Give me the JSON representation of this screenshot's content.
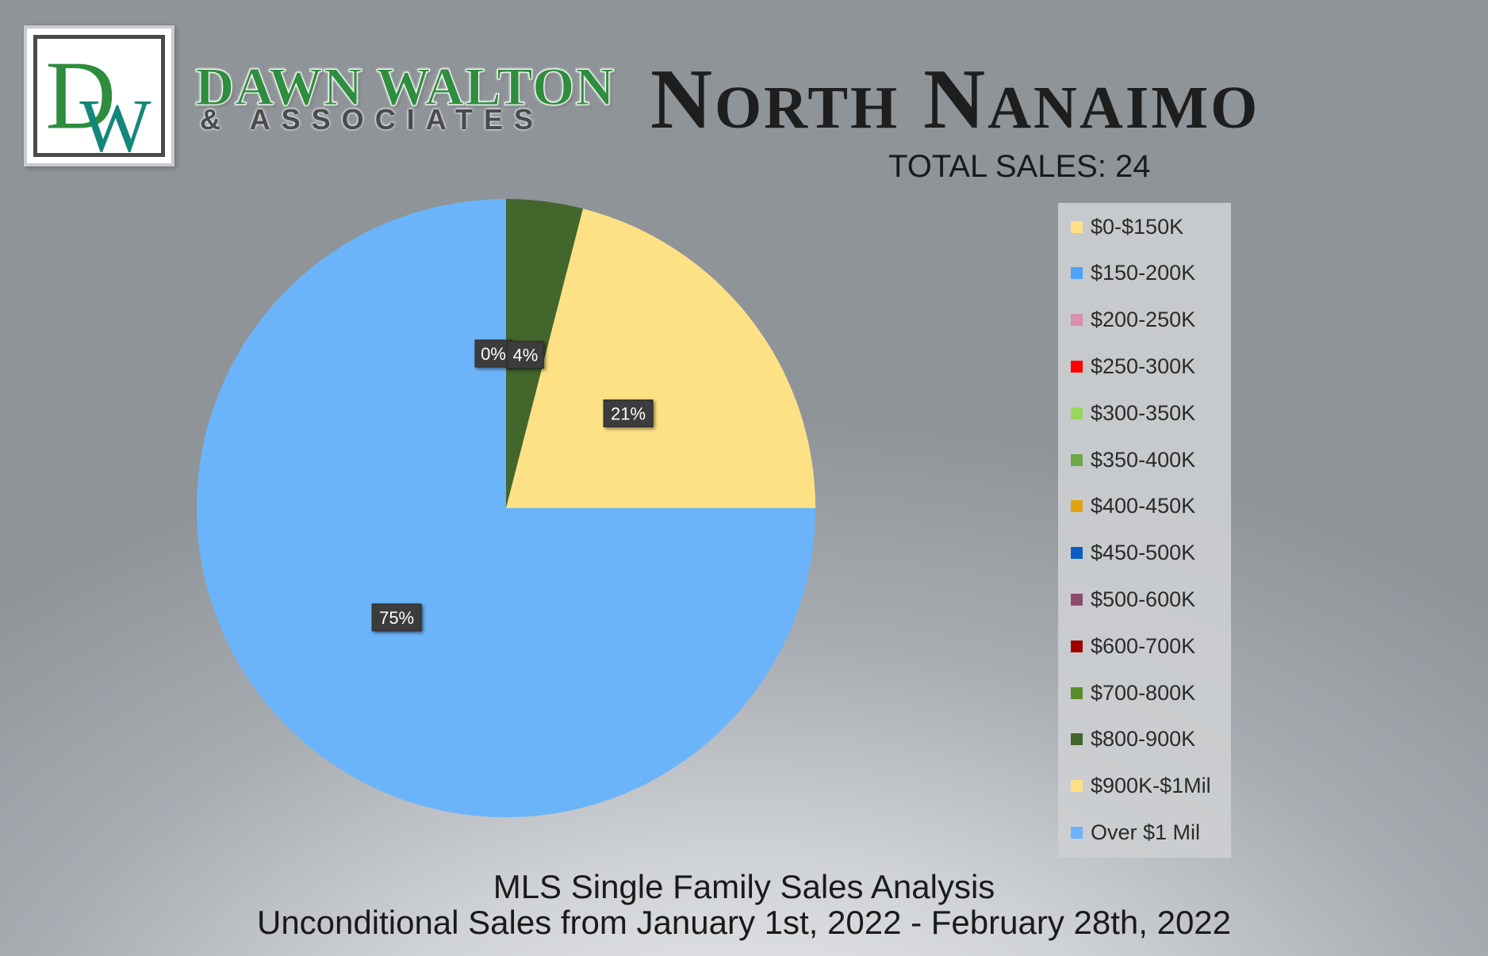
{
  "brand": {
    "logo_letters": "DW",
    "name": "DAWN WALTON",
    "subname": "& ASSOCIATES"
  },
  "header": {
    "title": "North Nanaimo",
    "total_sales": "TOTAL SALES: 24"
  },
  "chart_data": {
    "type": "pie",
    "start_angle_deg": 0,
    "slices": [
      {
        "name": "$0-$150K",
        "value": 0,
        "color": "#ffe185",
        "label": ""
      },
      {
        "name": "$150-200K",
        "value": 0,
        "color": "#4da3f7",
        "label": ""
      },
      {
        "name": "$200-250K",
        "value": 0,
        "color": "#d88fb0",
        "label": ""
      },
      {
        "name": "$250-300K",
        "value": 0,
        "color": "#ff0000",
        "label": ""
      },
      {
        "name": "$300-350K",
        "value": 0,
        "color": "#99d65a",
        "label": ""
      },
      {
        "name": "$350-400K",
        "value": 0,
        "color": "#6aab45",
        "label": ""
      },
      {
        "name": "$400-450K",
        "value": 0,
        "color": "#e0a20f",
        "label": ""
      },
      {
        "name": "$450-500K",
        "value": 0,
        "color": "#0b5fc2",
        "label": ""
      },
      {
        "name": "$500-600K",
        "value": 0,
        "color": "#8b4d6e",
        "label": ""
      },
      {
        "name": "$600-700K",
        "value": 0,
        "color": "#a00000",
        "label": ""
      },
      {
        "name": "$700-800K",
        "value": 0,
        "color": "#5a8c2a",
        "label": "0%"
      },
      {
        "name": "$800-900K",
        "value": 4,
        "color": "#43662c",
        "label": "4%"
      },
      {
        "name": "$900K-$1Mil",
        "value": 21,
        "color": "#ffe185",
        "label": "21%"
      },
      {
        "name": "Over $1 Mil",
        "value": 75,
        "color": "#6cb4fa",
        "label": "75%"
      }
    ],
    "legend_position": "right"
  },
  "footer": {
    "line1": "MLS Single Family Sales Analysis",
    "line2": "Unconditional Sales from January 1st, 2022 - February 28th, 2022"
  }
}
